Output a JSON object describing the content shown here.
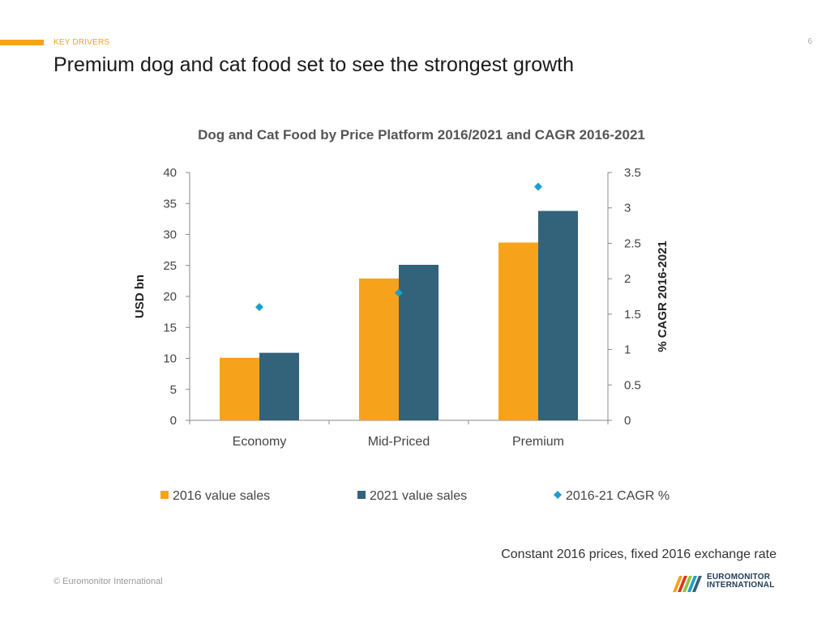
{
  "header": {
    "section_label": "KEY DRIVERS",
    "page_number": "6",
    "title": "Premium dog and cat food set to see the strongest growth"
  },
  "colors": {
    "accent": "#f7a21b",
    "series_2016": "#f7a21b",
    "series_2021": "#33627b",
    "series_cagr": "#1aa0c8",
    "axis": "#888888"
  },
  "chart_data": {
    "type": "bar",
    "title": "Dog and Cat Food by Price Platform 2016/2021 and CAGR 2016-2021",
    "categories": [
      "Economy",
      "Mid-Priced",
      "Premium"
    ],
    "series": [
      {
        "name": "2016 value sales",
        "kind": "bar",
        "axis": "left",
        "values": [
          10.1,
          22.9,
          28.7
        ]
      },
      {
        "name": "2021 value sales",
        "kind": "bar",
        "axis": "left",
        "values": [
          10.9,
          25.1,
          33.8
        ]
      },
      {
        "name": "2016-21 CAGR %",
        "kind": "scatter",
        "axis": "right",
        "values": [
          1.6,
          1.8,
          3.3
        ]
      }
    ],
    "ylabel": "USD bn",
    "y2label": "% CAGR 2016-2021",
    "ylim": [
      0,
      40
    ],
    "y2lim": [
      0,
      3.5
    ],
    "yticks": [
      "0",
      "5",
      "10",
      "15",
      "20",
      "25",
      "30",
      "35",
      "40"
    ],
    "y2ticks": [
      "0",
      "0.5",
      "1",
      "1.5",
      "2",
      "2.5",
      "3",
      "3.5"
    ],
    "grid": false,
    "legend": "bottom"
  },
  "footnote": "Constant 2016 prices, fixed 2016 exchange rate",
  "copyright": "© Euromonitor International",
  "logo": {
    "line1": "EUROMONITOR",
    "line2": "INTERNATIONAL"
  }
}
